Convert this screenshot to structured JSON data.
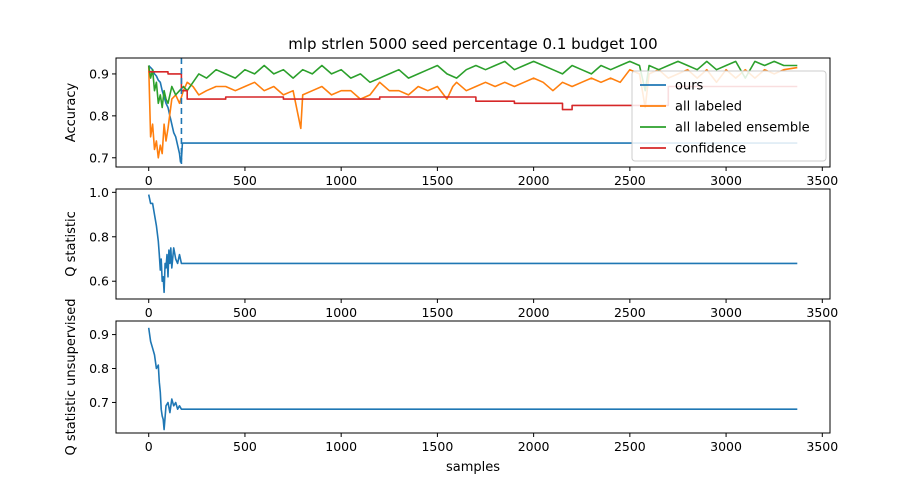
{
  "figure": {
    "title": "mlp strlen 5000 seed percentage 0.1 budget 100",
    "xlabel": "samples"
  },
  "chart_data": [
    {
      "type": "line",
      "title": "mlp strlen 5000 seed percentage 0.1 budget 100",
      "xlabel": "",
      "ylabel": "Accuracy",
      "xlim": [
        -170,
        3540
      ],
      "ylim": [
        0.678,
        0.938
      ],
      "xticks": [
        0,
        500,
        1000,
        1500,
        2000,
        2500,
        3000,
        3500
      ],
      "yticks": [
        0.7,
        0.8,
        0.9
      ],
      "legend": "right",
      "grid": false,
      "annotations": [
        {
          "type": "vline",
          "x": 170,
          "style": "dashed",
          "color": "#1f77b4"
        }
      ],
      "series": [
        {
          "name": "ours",
          "color": "#1f77b4",
          "x": [
            0,
            10,
            20,
            30,
            40,
            50,
            60,
            70,
            80,
            90,
            100,
            110,
            120,
            130,
            140,
            150,
            160,
            165,
            170,
            175,
            3370
          ],
          "y": [
            0.92,
            0.915,
            0.91,
            0.9,
            0.895,
            0.885,
            0.88,
            0.86,
            0.845,
            0.83,
            0.82,
            0.8,
            0.78,
            0.76,
            0.75,
            0.73,
            0.71,
            0.69,
            0.695,
            0.735,
            0.735
          ]
        },
        {
          "name": "all labeled",
          "color": "#ff7f0e",
          "x": [
            0,
            10,
            20,
            30,
            40,
            50,
            60,
            70,
            80,
            90,
            100,
            120,
            140,
            160,
            180,
            200,
            230,
            260,
            300,
            350,
            400,
            450,
            500,
            550,
            600,
            650,
            700,
            750,
            790,
            800,
            850,
            900,
            950,
            1000,
            1050,
            1100,
            1150,
            1200,
            1250,
            1300,
            1350,
            1400,
            1450,
            1500,
            1550,
            1580,
            1600,
            1650,
            1700,
            1750,
            1800,
            1850,
            1900,
            1950,
            2000,
            2050,
            2100,
            2150,
            2200,
            2250,
            2300,
            2350,
            2400,
            2450,
            2500,
            2550,
            2580,
            2600,
            2650,
            2700,
            2750,
            2800,
            2850,
            2900,
            2950,
            3000,
            3050,
            3100,
            3150,
            3200,
            3250,
            3300,
            3370
          ],
          "y": [
            0.92,
            0.75,
            0.78,
            0.72,
            0.74,
            0.7,
            0.73,
            0.71,
            0.78,
            0.74,
            0.77,
            0.84,
            0.85,
            0.83,
            0.86,
            0.88,
            0.87,
            0.85,
            0.86,
            0.87,
            0.87,
            0.86,
            0.87,
            0.88,
            0.86,
            0.87,
            0.85,
            0.86,
            0.77,
            0.85,
            0.86,
            0.87,
            0.85,
            0.86,
            0.86,
            0.84,
            0.85,
            0.88,
            0.86,
            0.86,
            0.85,
            0.87,
            0.86,
            0.87,
            0.84,
            0.87,
            0.88,
            0.86,
            0.87,
            0.88,
            0.87,
            0.88,
            0.87,
            0.88,
            0.89,
            0.88,
            0.86,
            0.88,
            0.87,
            0.88,
            0.89,
            0.88,
            0.89,
            0.88,
            0.91,
            0.9,
            0.82,
            0.9,
            0.91,
            0.89,
            0.9,
            0.91,
            0.89,
            0.91,
            0.88,
            0.91,
            0.89,
            0.91,
            0.89,
            0.91,
            0.9,
            0.91,
            0.915
          ]
        },
        {
          "name": "all labeled ensemble",
          "color": "#2ca02c",
          "x": [
            0,
            10,
            20,
            30,
            40,
            50,
            60,
            70,
            80,
            90,
            100,
            120,
            140,
            160,
            180,
            200,
            230,
            260,
            300,
            350,
            400,
            450,
            500,
            550,
            600,
            650,
            700,
            750,
            800,
            850,
            900,
            950,
            1000,
            1050,
            1100,
            1150,
            1200,
            1250,
            1300,
            1350,
            1400,
            1450,
            1500,
            1550,
            1600,
            1650,
            1700,
            1750,
            1800,
            1850,
            1900,
            1950,
            2000,
            2050,
            2100,
            2150,
            2200,
            2250,
            2300,
            2350,
            2400,
            2450,
            2500,
            2550,
            2580,
            2600,
            2650,
            2700,
            2750,
            2800,
            2850,
            2900,
            2950,
            3000,
            3050,
            3100,
            3150,
            3200,
            3250,
            3300,
            3370
          ],
          "y": [
            0.92,
            0.89,
            0.91,
            0.86,
            0.88,
            0.83,
            0.85,
            0.82,
            0.86,
            0.84,
            0.83,
            0.87,
            0.85,
            0.86,
            0.87,
            0.86,
            0.88,
            0.9,
            0.89,
            0.91,
            0.9,
            0.89,
            0.91,
            0.9,
            0.92,
            0.9,
            0.91,
            0.89,
            0.91,
            0.9,
            0.92,
            0.9,
            0.91,
            0.89,
            0.9,
            0.88,
            0.89,
            0.9,
            0.91,
            0.89,
            0.9,
            0.91,
            0.92,
            0.9,
            0.89,
            0.91,
            0.92,
            0.91,
            0.92,
            0.93,
            0.91,
            0.92,
            0.93,
            0.92,
            0.91,
            0.9,
            0.92,
            0.91,
            0.9,
            0.92,
            0.91,
            0.92,
            0.93,
            0.92,
            0.86,
            0.92,
            0.91,
            0.92,
            0.93,
            0.92,
            0.91,
            0.93,
            0.91,
            0.92,
            0.93,
            0.89,
            0.93,
            0.92,
            0.93,
            0.92,
            0.92
          ]
        },
        {
          "name": "confidence",
          "color": "#d62728",
          "x": [
            0,
            100,
            100,
            170,
            170,
            200,
            200,
            400,
            400,
            700,
            700,
            1200,
            1200,
            1700,
            1700,
            1900,
            1900,
            2150,
            2150,
            2200,
            2200,
            2700,
            2700,
            3370
          ],
          "y": [
            0.905,
            0.905,
            0.9,
            0.9,
            0.86,
            0.86,
            0.84,
            0.84,
            0.845,
            0.845,
            0.84,
            0.84,
            0.845,
            0.845,
            0.835,
            0.835,
            0.83,
            0.83,
            0.815,
            0.815,
            0.825,
            0.825,
            0.87,
            0.87
          ]
        }
      ]
    },
    {
      "type": "line",
      "xlabel": "",
      "ylabel": "Q statistic",
      "xlim": [
        -170,
        3540
      ],
      "ylim": [
        0.52,
        1.015
      ],
      "xticks": [
        0,
        500,
        1000,
        1500,
        2000,
        2500,
        3000,
        3500
      ],
      "yticks": [
        0.6,
        0.8,
        1.0
      ],
      "grid": false,
      "series": [
        {
          "color": "#1f77b4",
          "x": [
            0,
            10,
            20,
            30,
            40,
            50,
            55,
            60,
            65,
            70,
            75,
            80,
            85,
            90,
            95,
            100,
            105,
            110,
            115,
            120,
            130,
            140,
            150,
            160,
            170,
            3370
          ],
          "y": [
            0.99,
            0.95,
            0.95,
            0.9,
            0.85,
            0.78,
            0.72,
            0.65,
            0.7,
            0.6,
            0.62,
            0.55,
            0.68,
            0.66,
            0.72,
            0.62,
            0.74,
            0.68,
            0.75,
            0.66,
            0.75,
            0.7,
            0.68,
            0.72,
            0.68,
            0.68
          ]
        }
      ]
    },
    {
      "type": "line",
      "xlabel": "samples",
      "ylabel": "Q statistic unsupervised",
      "xlim": [
        -170,
        3540
      ],
      "ylim": [
        0.61,
        0.94
      ],
      "xticks": [
        0,
        500,
        1000,
        1500,
        2000,
        2500,
        3000,
        3500
      ],
      "yticks": [
        0.7,
        0.8,
        0.9
      ],
      "grid": false,
      "series": [
        {
          "color": "#1f77b4",
          "x": [
            0,
            10,
            20,
            30,
            40,
            50,
            55,
            60,
            65,
            70,
            75,
            80,
            90,
            100,
            110,
            120,
            130,
            140,
            150,
            160,
            170,
            3370
          ],
          "y": [
            0.92,
            0.88,
            0.86,
            0.84,
            0.8,
            0.81,
            0.76,
            0.73,
            0.68,
            0.66,
            0.65,
            0.62,
            0.69,
            0.7,
            0.67,
            0.71,
            0.69,
            0.7,
            0.68,
            0.69,
            0.68,
            0.68
          ]
        }
      ]
    }
  ]
}
